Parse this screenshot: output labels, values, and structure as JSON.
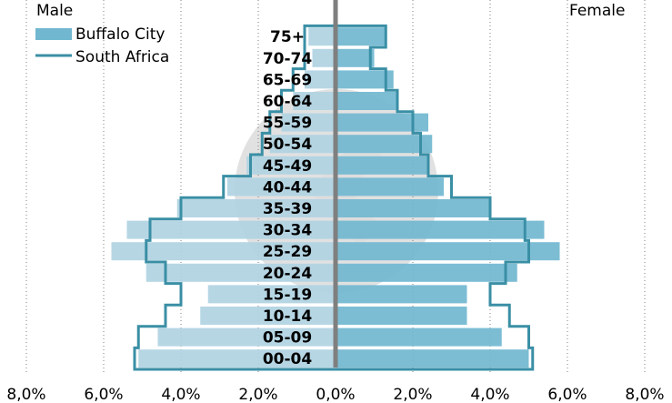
{
  "chart_data": {
    "type": "bar",
    "orientation": "horizontal-population-pyramid",
    "left_label": "Male",
    "right_label": "Female",
    "categories": [
      "00-04",
      "05-09",
      "10-14",
      "15-19",
      "20-24",
      "25-29",
      "30-34",
      "35-39",
      "40-44",
      "45-49",
      "50-54",
      "55-59",
      "60-64",
      "65-69",
      "70-74",
      "75+"
    ],
    "series": [
      {
        "name": "Buffalo City",
        "kind": "bars",
        "male": [
          5.1,
          4.6,
          3.5,
          3.3,
          4.9,
          5.8,
          5.4,
          4.1,
          2.8,
          2.3,
          1.7,
          1.4,
          1.1,
          0.8,
          0.6,
          0.7
        ],
        "female": [
          5.0,
          4.3,
          3.4,
          3.4,
          4.7,
          5.8,
          5.4,
          4.0,
          2.8,
          2.4,
          2.5,
          2.4,
          1.6,
          1.5,
          1.0,
          1.3
        ]
      },
      {
        "name": "South Africa",
        "kind": "outline",
        "male": [
          5.2,
          5.1,
          4.4,
          4.0,
          4.4,
          4.9,
          4.8,
          4.0,
          2.9,
          2.2,
          1.9,
          1.7,
          1.4,
          1.1,
          0.8,
          0.8
        ],
        "female": [
          5.1,
          5.0,
          4.5,
          4.0,
          4.4,
          5.0,
          4.9,
          4.0,
          3.0,
          2.4,
          2.2,
          2.0,
          1.6,
          1.3,
          0.9,
          1.3
        ]
      }
    ],
    "x_ticks": [
      "8,0%",
      "6,0%",
      "4,0%",
      "2,0%",
      "0,0%",
      "2,0%",
      "4,0%",
      "6,0%",
      "8,0%"
    ],
    "xlim": [
      -8,
      8
    ],
    "grid": "vertical-dotted",
    "legend_position": "top-left",
    "colors": {
      "bar_female": "#71b7d0",
      "bar_male": "#b0d3e2",
      "outline": "#3a8fa5",
      "center_axis": "#7f7f7f",
      "grid": "#7f7f7f",
      "watermark": "#c9c9c9"
    }
  }
}
